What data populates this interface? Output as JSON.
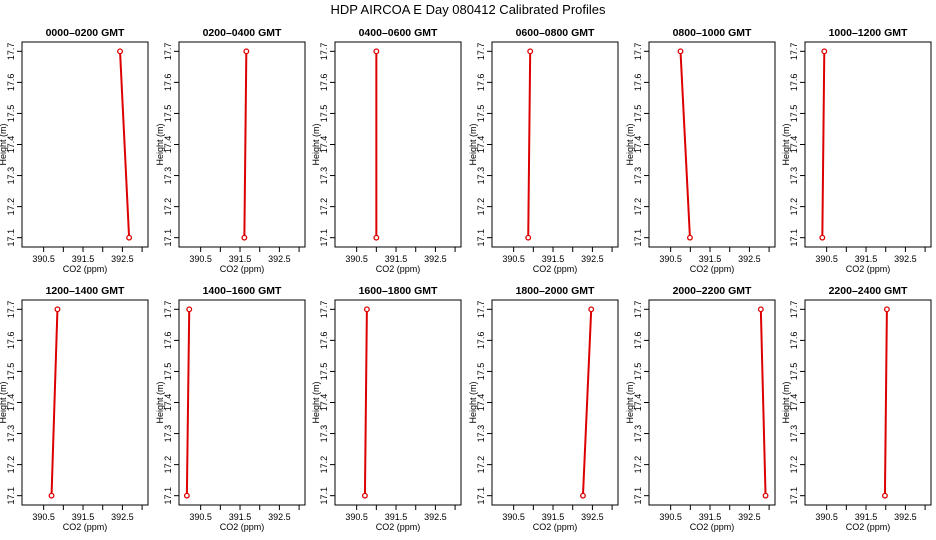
{
  "title": "HDP AIRCOA E  Day 080412  Calibrated Profiles",
  "colors": {
    "series": "#dd0000",
    "axis": "#000000"
  },
  "axes": {
    "xlabel": "CO2 (ppm)",
    "ylabel": "Height (m)",
    "xlim": [
      389.95,
      393.15
    ],
    "ylim": [
      17.07,
      17.73
    ],
    "xticks": [
      390.5,
      391,
      391.5,
      392,
      392.5,
      393
    ],
    "xtick_labels": [
      "390.5",
      "",
      "391.5",
      "",
      "392.5",
      ""
    ],
    "yticks": [
      17.1,
      17.2,
      17.3,
      17.4,
      17.5,
      17.6,
      17.7
    ],
    "ytick_labels": [
      "17.1",
      "17.2",
      "17.3",
      "17.4",
      "17.5",
      "17.6",
      "17.7"
    ],
    "grid": false
  },
  "chart_data": [
    {
      "type": "line",
      "title": "0000–0200 GMT",
      "x": [
        392.67,
        392.44
      ],
      "y": [
        17.1,
        17.7
      ]
    },
    {
      "type": "line",
      "title": "0200–0400 GMT",
      "x": [
        391.61,
        391.66
      ],
      "y": [
        17.1,
        17.7
      ]
    },
    {
      "type": "line",
      "title": "0400–0600 GMT",
      "x": [
        391.0,
        391.0
      ],
      "y": [
        17.1,
        17.7
      ]
    },
    {
      "type": "line",
      "title": "0600–0800 GMT",
      "x": [
        390.87,
        390.92
      ],
      "y": [
        17.1,
        17.7
      ]
    },
    {
      "type": "line",
      "title": "0800–1000 GMT",
      "x": [
        390.99,
        390.75
      ],
      "y": [
        17.1,
        17.7
      ]
    },
    {
      "type": "line",
      "title": "1000–1200 GMT",
      "x": [
        390.39,
        390.44
      ],
      "y": [
        17.1,
        17.7
      ]
    },
    {
      "type": "line",
      "title": "1200–1400 GMT",
      "x": [
        390.7,
        390.85
      ],
      "y": [
        17.1,
        17.7
      ]
    },
    {
      "type": "line",
      "title": "1400–1600 GMT",
      "x": [
        390.15,
        390.21
      ],
      "y": [
        17.1,
        17.7
      ]
    },
    {
      "type": "line",
      "title": "1600–1800 GMT",
      "x": [
        390.71,
        390.76
      ],
      "y": [
        17.1,
        17.7
      ]
    },
    {
      "type": "line",
      "title": "1800–2000 GMT",
      "x": [
        392.26,
        392.47
      ],
      "y": [
        17.1,
        17.7
      ]
    },
    {
      "type": "line",
      "title": "2000–2200 GMT",
      "x": [
        392.91,
        392.79
      ],
      "y": [
        17.1,
        17.7
      ]
    },
    {
      "type": "line",
      "title": "2200–2400 GMT",
      "x": [
        391.98,
        392.03
      ],
      "y": [
        17.1,
        17.7
      ]
    }
  ]
}
